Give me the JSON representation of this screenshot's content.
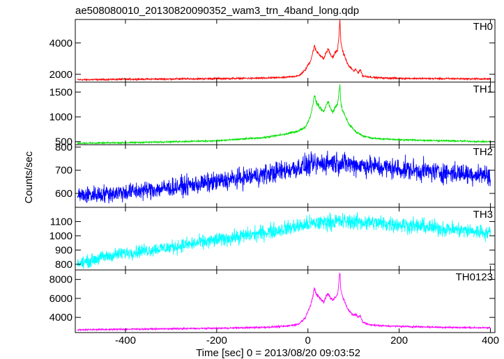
{
  "chart_data": {
    "type": "line",
    "title": "ae508080010_20130820090352_wam3_trn_4band_long.qdp",
    "xlabel": "Time [sec] 0 = 2013/08/20 09:03:52",
    "ylabel": "Counts/sec",
    "xlim": [
      -510,
      410
    ],
    "xticks": [
      -400,
      -200,
      0,
      200,
      400
    ],
    "grid": false,
    "panels": [
      {
        "name": "TH0",
        "color": "#ff0000",
        "ylim": [
          1500,
          5500
        ],
        "yticks": [
          2000,
          4000
        ],
        "x": [
          -505,
          -400,
          -300,
          -200,
          -100,
          -50,
          -20,
          -5,
          0,
          5,
          10,
          14,
          18,
          25,
          30,
          35,
          40,
          45,
          50,
          55,
          60,
          65,
          68,
          70,
          72,
          75,
          80,
          85,
          90,
          95,
          100,
          105,
          110,
          115,
          120,
          130,
          150,
          200,
          300,
          400
        ],
        "values": [
          1650,
          1680,
          1700,
          1720,
          1750,
          1800,
          1900,
          2300,
          2600,
          2800,
          3300,
          3800,
          3500,
          3300,
          3100,
          3000,
          3400,
          3600,
          3200,
          3100,
          3400,
          3500,
          4500,
          5400,
          4200,
          3600,
          3200,
          2800,
          2500,
          2400,
          2200,
          2300,
          2100,
          2300,
          1900,
          1850,
          1780,
          1740,
          1720,
          1700
        ]
      },
      {
        "name": "TH1",
        "color": "#00e000",
        "ylim": [
          440,
          1700
        ],
        "yticks": [
          500,
          1000,
          1500
        ],
        "x": [
          -505,
          -400,
          -300,
          -200,
          -100,
          -50,
          -20,
          -5,
          0,
          5,
          10,
          14,
          18,
          25,
          30,
          35,
          40,
          45,
          50,
          55,
          60,
          65,
          68,
          70,
          72,
          75,
          80,
          85,
          90,
          95,
          100,
          105,
          110,
          120,
          140,
          200,
          300,
          400
        ],
        "values": [
          470,
          480,
          500,
          520,
          580,
          650,
          720,
          800,
          900,
          1000,
          1200,
          1450,
          1300,
          1200,
          1150,
          1100,
          1250,
          1300,
          1150,
          1100,
          1200,
          1250,
          1500,
          1650,
          1300,
          1150,
          1050,
          950,
          850,
          800,
          750,
          700,
          680,
          620,
          570,
          540,
          520,
          500
        ]
      },
      {
        "name": "TH2",
        "color": "#0000ff",
        "ylim": [
          540,
          810
        ],
        "yticks": [
          600,
          700,
          800
        ],
        "x": [
          -505,
          -400,
          -300,
          -200,
          -100,
          0,
          50,
          100,
          200,
          300,
          400
        ],
        "values": [
          590,
          605,
          625,
          650,
          680,
          720,
          735,
          725,
          705,
          690,
          680
        ]
      },
      {
        "name": "TH3",
        "color": "#00ffff",
        "ylim": [
          760,
          1200
        ],
        "yticks": [
          800,
          900,
          1000,
          1100
        ],
        "x": [
          -505,
          -450,
          -400,
          -300,
          -200,
          -100,
          0,
          50,
          100,
          150,
          200,
          300,
          400
        ],
        "values": [
          800,
          850,
          880,
          920,
          970,
          1020,
          1080,
          1100,
          1100,
          1090,
          1080,
          1050,
          1020
        ]
      },
      {
        "name": "TH0123",
        "color": "#ff00ff",
        "ylim": [
          2400,
          9000
        ],
        "yticks": [
          4000,
          6000,
          8000
        ],
        "x": [
          -505,
          -400,
          -300,
          -200,
          -100,
          -50,
          -20,
          -5,
          0,
          5,
          10,
          14,
          18,
          25,
          30,
          35,
          40,
          45,
          50,
          55,
          60,
          65,
          68,
          70,
          72,
          75,
          80,
          85,
          90,
          95,
          100,
          105,
          110,
          115,
          120,
          130,
          150,
          200,
          300,
          400
        ],
        "values": [
          2700,
          2750,
          2800,
          2850,
          2950,
          3050,
          3300,
          4000,
          4700,
          5200,
          6000,
          7000,
          6500,
          6100,
          5800,
          5600,
          6300,
          6500,
          6000,
          5800,
          6200,
          6400,
          7800,
          8700,
          7100,
          6300,
          5700,
          5100,
          4700,
          4500,
          4200,
          4300,
          4000,
          4200,
          3500,
          3300,
          3150,
          3050,
          2950,
          2900
        ]
      }
    ]
  }
}
